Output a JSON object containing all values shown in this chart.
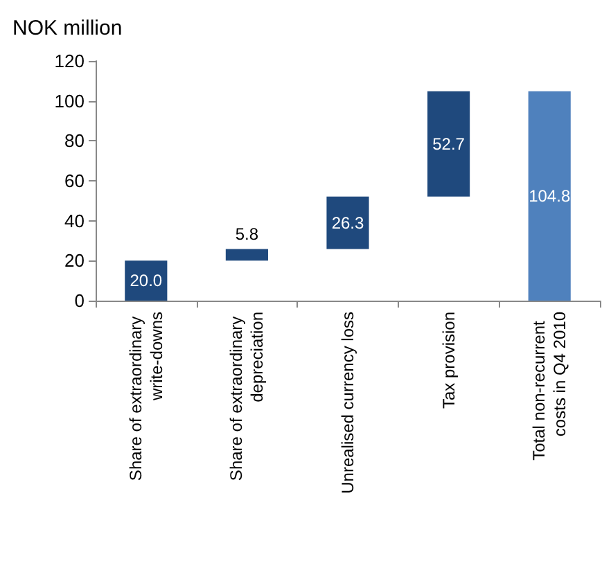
{
  "chart_data": {
    "type": "bar",
    "ylabel": "NOK million",
    "categories": [
      "Share of extraordinary write-downs",
      "Share of extraordinary depreciation",
      "Unrealised currency loss",
      "Tax provision",
      "Total non-recurrent  costs in Q4 2010"
    ],
    "values": [
      20.0,
      5.8,
      26.3,
      52.7,
      104.8
    ],
    "base": [
      0,
      20.0,
      25.8,
      52.1,
      0
    ],
    "colors": [
      "#1f497d",
      "#1f497d",
      "#1f497d",
      "#1f497d",
      "#4f81bd"
    ],
    "value_labels": [
      "20.0",
      "5.8",
      "26.3",
      "52.7",
      "104.8"
    ],
    "ylim": [
      0,
      120
    ],
    "yticks": [
      0,
      20,
      40,
      60,
      80,
      100,
      120
    ],
    "grid": false
  }
}
